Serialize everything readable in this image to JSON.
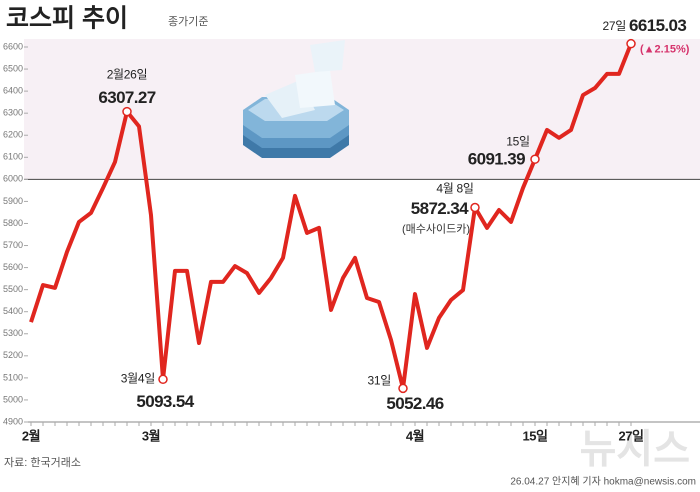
{
  "chart_data": {
    "type": "line",
    "title": "코스피 추이",
    "subtitle": "종가기준",
    "source": "자료: 한국거래소",
    "credit": "26.04.27 안지혜 기자 hokma@newsis.com",
    "watermark": "뉴시스",
    "categories": [
      "2월",
      null,
      null,
      null,
      null,
      null,
      null,
      null,
      null,
      null,
      "3월",
      null,
      null,
      null,
      null,
      null,
      null,
      null,
      null,
      null,
      null,
      null,
      null,
      null,
      null,
      null,
      null,
      null,
      null,
      null,
      null,
      null,
      "4월",
      null,
      null,
      null,
      null,
      null,
      null,
      null,
      null,
      null,
      "15일",
      null,
      null,
      null,
      null,
      null,
      null,
      null,
      "27일"
    ],
    "series": [
      {
        "name": "코스피",
        "color": "#e0261f",
        "values": [
          5353,
          5521,
          5508,
          5671,
          5807,
          5848,
          5961,
          6079,
          6307.27,
          6240,
          5838,
          5093.54,
          5585,
          5585,
          5258,
          5535,
          5535,
          5607,
          5575,
          5485,
          5553,
          5644,
          5925,
          5757,
          5780,
          5408,
          5553,
          5644,
          5462,
          5444,
          5272,
          5052.46,
          5480,
          5236,
          5372,
          5453,
          5498,
          5872.34,
          5780,
          5861,
          5807,
          5961,
          6091.39,
          6224,
          6188,
          6224,
          6382,
          6414,
          6478,
          6478,
          6615.03
        ],
        "point_labels": [
          null,
          null,
          null,
          null,
          null,
          null,
          null,
          null,
          "2월26일",
          null,
          null,
          "3월4일",
          null,
          null,
          null,
          null,
          null,
          null,
          null,
          null,
          null,
          null,
          null,
          null,
          null,
          null,
          null,
          null,
          null,
          null,
          null,
          "31일",
          null,
          null,
          null,
          null,
          null,
          "4월 8일",
          null,
          null,
          null,
          null,
          "15일",
          null,
          null,
          null,
          null,
          null,
          null,
          null,
          "27일"
        ],
        "point_notes": [
          null,
          null,
          null,
          null,
          null,
          null,
          null,
          null,
          null,
          null,
          null,
          null,
          null,
          null,
          null,
          null,
          null,
          null,
          null,
          null,
          null,
          null,
          null,
          null,
          null,
          null,
          null,
          null,
          null,
          null,
          null,
          null,
          null,
          null,
          null,
          null,
          null,
          "(매수사이드카)",
          null,
          null,
          null,
          null,
          null,
          null,
          null,
          null,
          null,
          null,
          null,
          null,
          "(▲2.15%)"
        ]
      }
    ],
    "ylim": [
      4900,
      6600
    ],
    "yticks": [
      4900,
      5000,
      5100,
      5200,
      5300,
      5400,
      5500,
      5600,
      5700,
      5800,
      5900,
      6000,
      6100,
      6200,
      6300,
      6400,
      6500,
      6600
    ],
    "reference_line": 6000
  }
}
